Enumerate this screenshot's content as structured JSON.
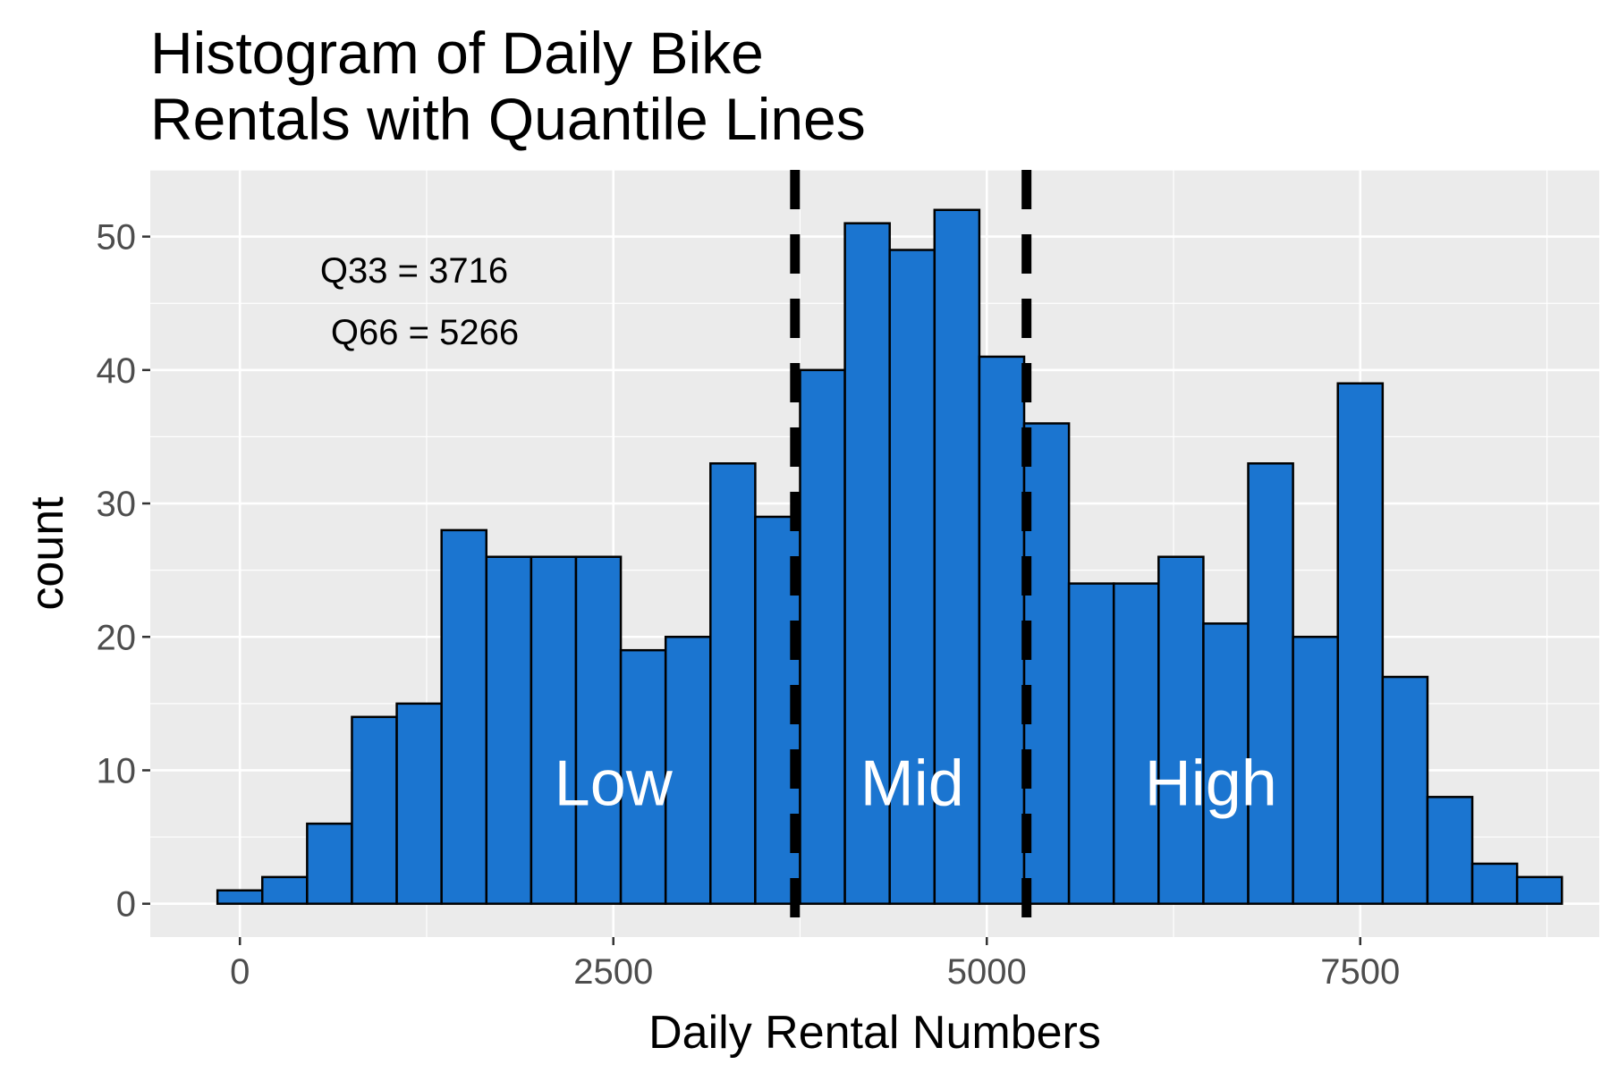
{
  "chart_data": {
    "type": "bar",
    "title_line1": "Histogram of Daily Bike",
    "title_line2": "Rentals with Quantile Lines",
    "xlabel": "Daily Rental Numbers",
    "ylabel": "count",
    "xlim": [
      -600,
      9100
    ],
    "ylim": [
      -2.5,
      55
    ],
    "x_ticks": [
      0,
      2500,
      5000,
      7500
    ],
    "x_tick_labels": [
      "0",
      "2500",
      "5000",
      "7500"
    ],
    "y_ticks": [
      0,
      10,
      20,
      30,
      40,
      50
    ],
    "y_tick_labels": [
      "0",
      "10",
      "20",
      "30",
      "40",
      "50"
    ],
    "bin_width": 300,
    "bin_starts": [
      -150,
      150,
      450,
      750,
      1050,
      1350,
      1650,
      1950,
      2250,
      2550,
      2850,
      3150,
      3450,
      3750,
      4050,
      4350,
      4650,
      4950,
      5250,
      5550,
      5850,
      6150,
      6450,
      6750,
      7050,
      7350,
      7650,
      7950,
      8250,
      8550
    ],
    "values": [
      1,
      2,
      6,
      14,
      15,
      28,
      26,
      26,
      26,
      19,
      20,
      33,
      29,
      40,
      51,
      49,
      52,
      41,
      36,
      24,
      24,
      26,
      21,
      33,
      20,
      39,
      17,
      8,
      3,
      2
    ],
    "bar_color": "#1b75d0",
    "bar_outline": "#000000",
    "quantile_lines": [
      3716,
      5266
    ],
    "annotation_q33": "Q33 =  3716",
    "annotation_q66": "Q66 =  5266",
    "region_labels": [
      {
        "text": "Low",
        "x": 2500,
        "y": 9
      },
      {
        "text": "Mid",
        "x": 4500,
        "y": 9
      },
      {
        "text": "High",
        "x": 6500,
        "y": 9
      }
    ],
    "grid": true,
    "panel_background": "#ebebeb"
  }
}
